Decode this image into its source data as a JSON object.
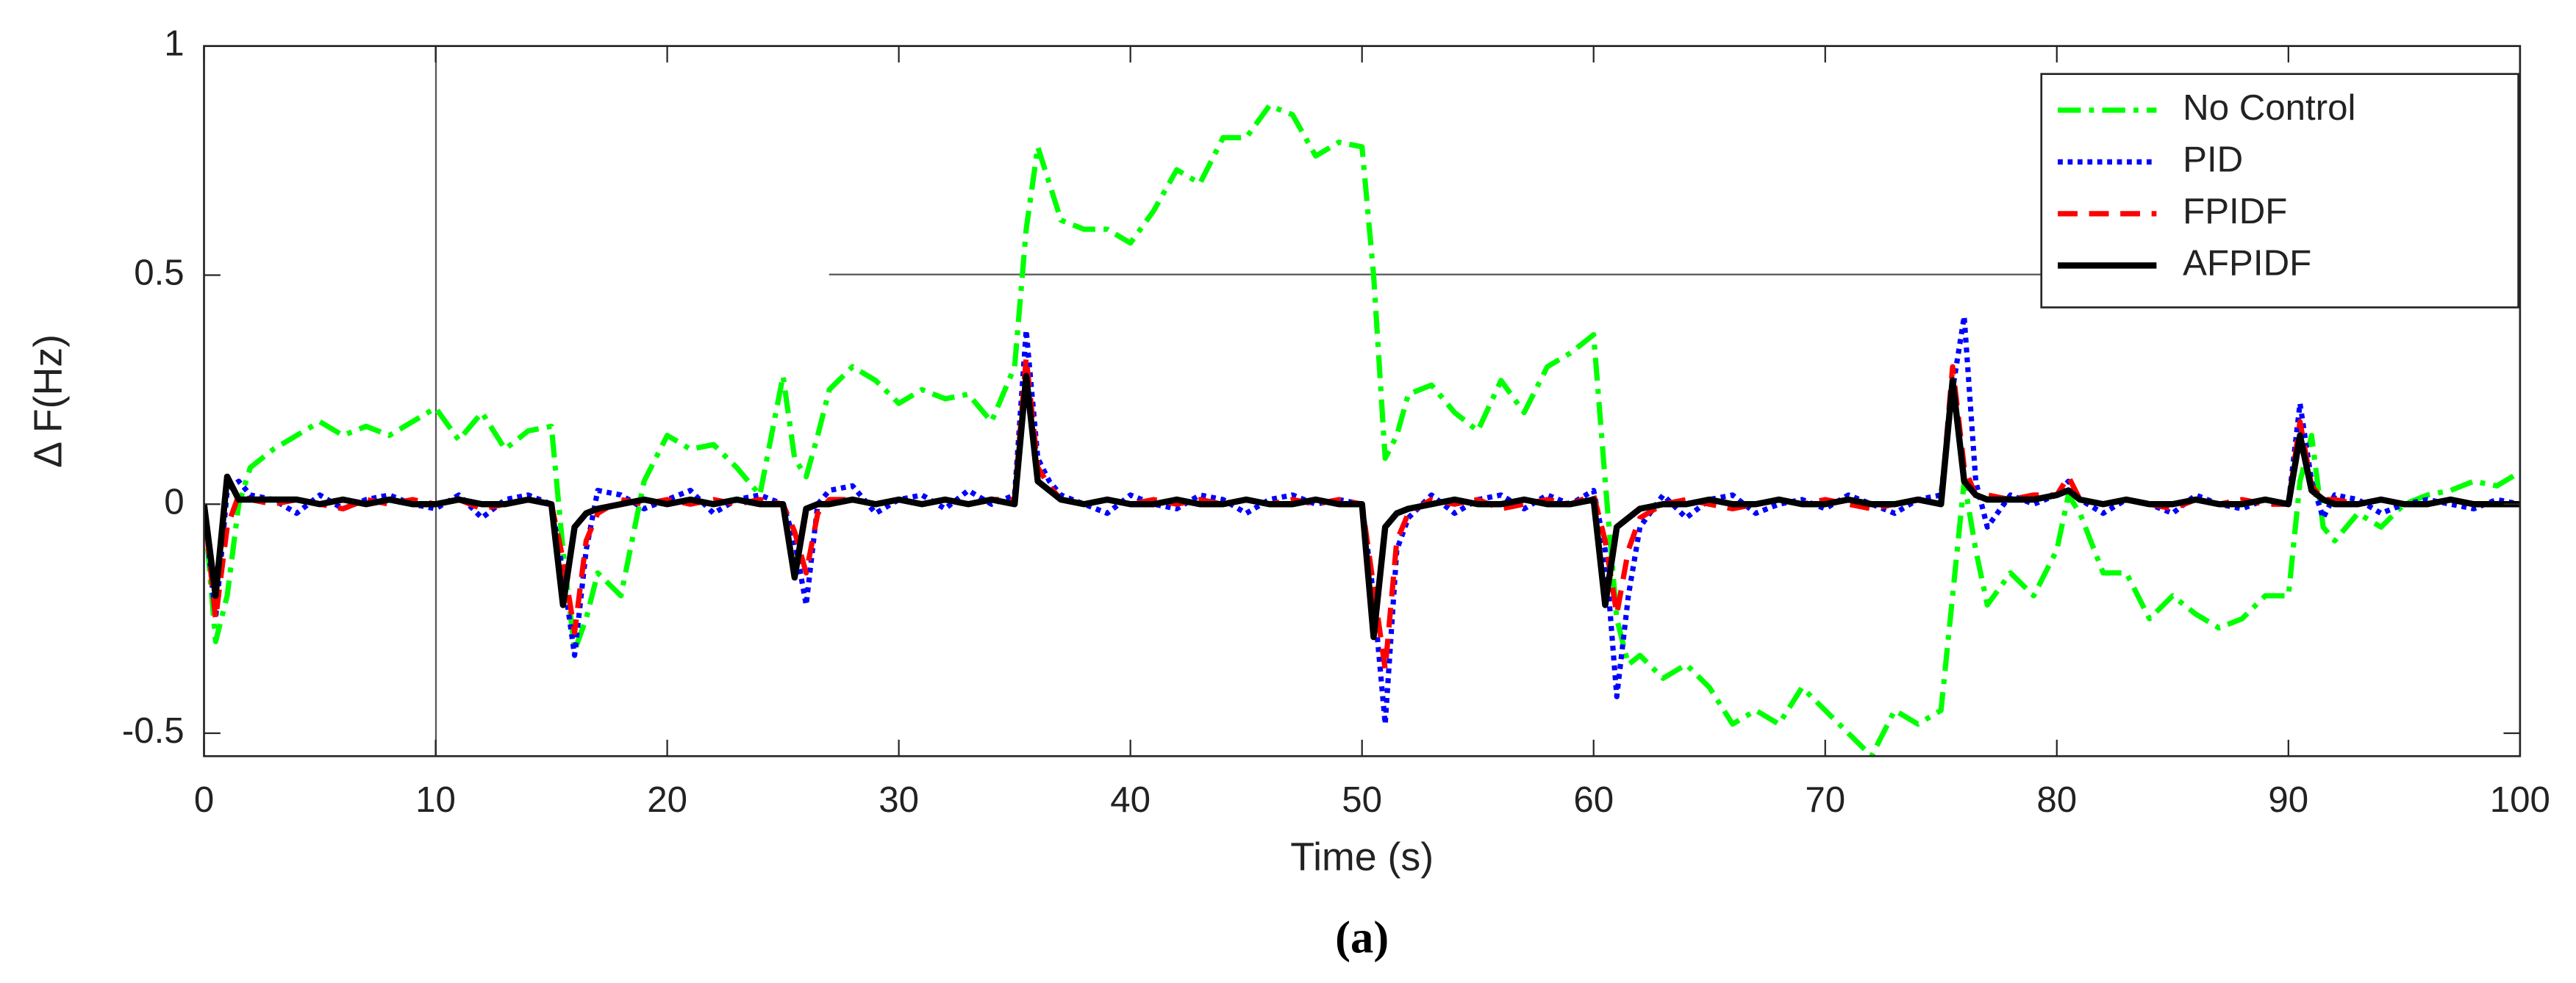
{
  "chart_data": {
    "type": "line",
    "caption": "(a)",
    "xlabel": "Time (s)",
    "ylabel": "Δ F(Hz)",
    "xlim": [
      0,
      100
    ],
    "ylim": [
      -0.55,
      1
    ],
    "xticks": [
      0,
      10,
      20,
      30,
      40,
      50,
      60,
      70,
      80,
      90,
      100
    ],
    "yticks": [
      -0.5,
      0,
      0.5,
      1
    ],
    "legend": "upper right",
    "x": [
      0,
      0.5,
      1,
      1.5,
      2,
      3,
      4,
      5,
      6,
      7,
      8,
      9,
      10,
      11,
      12,
      13,
      14,
      15,
      15.5,
      16,
      16.5,
      17,
      18,
      19,
      20,
      21,
      22,
      23,
      24,
      25,
      25.5,
      26,
      26.5,
      27,
      28,
      29,
      30,
      31,
      32,
      33,
      34,
      35,
      35.5,
      36,
      36.5,
      37,
      38,
      39,
      40,
      41,
      42,
      43,
      44,
      45,
      46,
      47,
      48,
      49,
      50,
      50.5,
      51,
      51.5,
      52,
      53,
      54,
      55,
      56,
      57,
      58,
      59,
      60,
      60.5,
      61,
      61.5,
      62,
      63,
      64,
      65,
      66,
      67,
      68,
      69,
      70,
      71,
      72,
      73,
      74,
      75,
      75.5,
      76,
      76.5,
      77,
      78,
      79,
      80,
      80.5,
      81,
      82,
      83,
      84,
      85,
      86,
      87,
      88,
      89,
      90,
      90.5,
      91,
      91.5,
      92,
      93,
      94,
      95,
      96,
      97,
      98,
      99,
      100
    ],
    "series": [
      {
        "name": "No Control",
        "color": "#00ff00",
        "line_style": "dash-dot",
        "values": [
          0,
          -0.3,
          -0.2,
          0,
          0.08,
          0.12,
          0.15,
          0.18,
          0.15,
          0.17,
          0.15,
          0.18,
          0.21,
          0.14,
          0.2,
          0.12,
          0.16,
          0.17,
          -0.1,
          -0.32,
          -0.25,
          -0.15,
          -0.2,
          0.05,
          0.15,
          0.12,
          0.13,
          0.08,
          0.02,
          0.28,
          0.1,
          0.06,
          0.15,
          0.25,
          0.3,
          0.27,
          0.22,
          0.25,
          0.23,
          0.24,
          0.18,
          0.3,
          0.6,
          0.78,
          0.7,
          0.62,
          0.6,
          0.6,
          0.57,
          0.64,
          0.73,
          0.7,
          0.8,
          0.8,
          0.87,
          0.85,
          0.76,
          0.79,
          0.78,
          0.5,
          0.1,
          0.15,
          0.24,
          0.26,
          0.2,
          0.16,
          0.27,
          0.2,
          0.3,
          0.33,
          0.37,
          0.05,
          -0.25,
          -0.35,
          -0.33,
          -0.38,
          -0.35,
          -0.4,
          -0.48,
          -0.45,
          -0.48,
          -0.4,
          -0.45,
          -0.5,
          -0.55,
          -0.45,
          -0.48,
          -0.45,
          -0.2,
          0.05,
          -0.1,
          -0.22,
          -0.15,
          -0.2,
          -0.1,
          0.02,
          -0.02,
          -0.15,
          -0.15,
          -0.25,
          -0.2,
          -0.24,
          -0.27,
          -0.25,
          -0.2,
          -0.2,
          0.05,
          0.15,
          -0.05,
          -0.08,
          -0.02,
          -0.05,
          0,
          0.02,
          0.03,
          0.05,
          0.04,
          0.07
        ]
      },
      {
        "name": "PID",
        "color": "#0000ff",
        "line_style": "dotted",
        "values": [
          0,
          -0.25,
          0.03,
          0.05,
          0.02,
          0.01,
          -0.02,
          0.02,
          -0.01,
          0.01,
          0.02,
          0,
          -0.01,
          0.02,
          -0.03,
          0.01,
          0.02,
          0,
          -0.15,
          -0.33,
          -0.1,
          0.03,
          0.02,
          -0.01,
          0.01,
          0.03,
          -0.02,
          0.01,
          0.02,
          0,
          -0.08,
          -0.22,
          0,
          0.03,
          0.04,
          -0.02,
          0.01,
          0.02,
          -0.01,
          0.03,
          0,
          0.02,
          0.38,
          0.1,
          0.05,
          0.02,
          0,
          -0.02,
          0.02,
          0,
          -0.01,
          0.02,
          0.01,
          -0.02,
          0.01,
          0.02,
          0,
          0.01,
          0,
          -0.2,
          -0.48,
          -0.1,
          -0.03,
          0.02,
          -0.02,
          0.01,
          0.02,
          -0.01,
          0.02,
          0,
          0.03,
          -0.1,
          -0.42,
          -0.2,
          -0.05,
          0.02,
          -0.03,
          0.01,
          0.02,
          -0.02,
          0,
          0.01,
          -0.01,
          0.02,
          0,
          -0.02,
          0.01,
          0.02,
          0.25,
          0.41,
          0.05,
          -0.05,
          0.02,
          0,
          0.02,
          0.05,
          0.01,
          -0.02,
          0.01,
          0,
          -0.02,
          0.02,
          0,
          -0.01,
          0.01,
          0,
          0.22,
          0.05,
          -0.03,
          0.02,
          0.01,
          -0.02,
          0,
          0.01,
          0,
          -0.01,
          0.01,
          0
        ]
      },
      {
        "name": "FPIDF",
        "color": "#ff0000",
        "line_style": "dashed",
        "values": [
          0,
          -0.25,
          -0.05,
          0.02,
          0.01,
          0,
          0.01,
          0,
          -0.01,
          0.01,
          0,
          0.01,
          0,
          0.01,
          -0.01,
          0,
          0.01,
          0,
          -0.12,
          -0.28,
          -0.08,
          -0.02,
          0.01,
          0,
          0.01,
          0,
          0.01,
          0,
          0.01,
          0,
          -0.06,
          -0.15,
          -0.02,
          0.01,
          0.01,
          0,
          0.01,
          0,
          0.01,
          0,
          0.01,
          0.01,
          0.32,
          0.08,
          0.04,
          0.01,
          0,
          0.01,
          0,
          0.01,
          0,
          0.01,
          0,
          0.01,
          0,
          0.01,
          0,
          0.01,
          0,
          -0.18,
          -0.36,
          -0.08,
          -0.02,
          0.01,
          0,
          0.01,
          -0.01,
          0,
          0.01,
          0,
          0.02,
          -0.08,
          -0.24,
          -0.1,
          -0.03,
          0,
          0.01,
          0,
          -0.01,
          0,
          0.01,
          0,
          0.01,
          0,
          -0.01,
          0,
          0.01,
          0,
          0.3,
          0.08,
          0.02,
          0.02,
          0.01,
          0.02,
          0.02,
          0.06,
          0.01,
          0,
          0.01,
          0,
          -0.01,
          0.01,
          0,
          0.01,
          0,
          0,
          0.18,
          0.04,
          0.01,
          0.01,
          0,
          0.01,
          0,
          0,
          0.01,
          0,
          0,
          0
        ]
      },
      {
        "name": "AFPIDF",
        "color": "#000000",
        "line_style": "solid",
        "values": [
          0,
          -0.2,
          0.06,
          0.01,
          0.01,
          0.01,
          0.01,
          0,
          0.01,
          0,
          0.01,
          0,
          0,
          0.01,
          0,
          0,
          0.01,
          0,
          -0.22,
          -0.05,
          -0.02,
          -0.01,
          0,
          0.01,
          0,
          0.01,
          0,
          0.01,
          0,
          0,
          -0.16,
          -0.01,
          0,
          0,
          0.01,
          0,
          0.01,
          0,
          0.01,
          0,
          0.01,
          0,
          0.28,
          0.05,
          0.03,
          0.01,
          0,
          0.01,
          0,
          0,
          0.01,
          0,
          0,
          0.01,
          0,
          0,
          0.01,
          0,
          0,
          -0.29,
          -0.05,
          -0.02,
          -0.01,
          0,
          0.01,
          0,
          0,
          0.01,
          0,
          0,
          0.01,
          -0.22,
          -0.05,
          -0.03,
          -0.01,
          0,
          0,
          0.01,
          0,
          0,
          0.01,
          0,
          0,
          0.01,
          0,
          0,
          0.01,
          0,
          0.27,
          0.05,
          0.02,
          0.01,
          0.01,
          0.01,
          0.02,
          0.03,
          0.01,
          0,
          0.01,
          0,
          0,
          0.01,
          0,
          0,
          0.01,
          0,
          0.15,
          0.03,
          0.01,
          0,
          0,
          0.01,
          0,
          0,
          0.01,
          0,
          0,
          0
        ]
      }
    ]
  }
}
